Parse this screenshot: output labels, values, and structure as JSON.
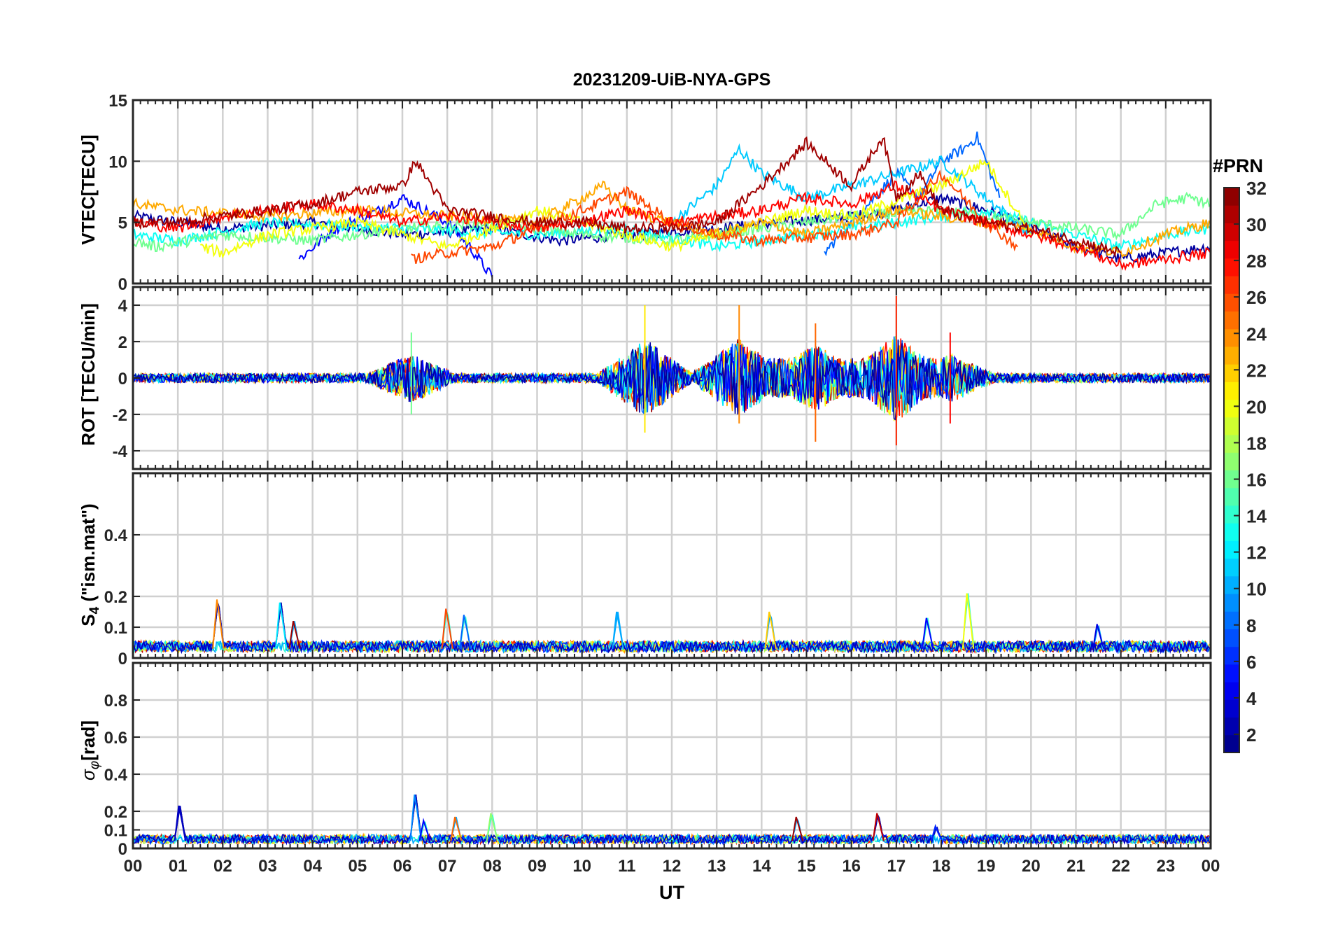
{
  "chart_data": {
    "type": "line",
    "title": "20231209-UiB-NYA-GPS",
    "xlabel": "UT",
    "x_unit": "hours UT",
    "xlim": [
      0,
      24
    ],
    "x_tick_labels": [
      "00",
      "01",
      "02",
      "03",
      "04",
      "05",
      "06",
      "07",
      "08",
      "09",
      "10",
      "11",
      "12",
      "13",
      "14",
      "15",
      "16",
      "17",
      "18",
      "19",
      "20",
      "21",
      "22",
      "23",
      "00"
    ],
    "grid": true,
    "color_by": "PRN",
    "colorbar": {
      "title": "#PRN",
      "colormap": "jet",
      "range": [
        1,
        32
      ],
      "tick_labels": [
        "2",
        "4",
        "6",
        "8",
        "10",
        "12",
        "14",
        "16",
        "18",
        "20",
        "22",
        "24",
        "26",
        "28",
        "30",
        "32"
      ],
      "placement": "right"
    },
    "panels": [
      {
        "id": "vtec",
        "ylabel": "VTEC[TECU]",
        "ylim": [
          0,
          15
        ],
        "y_tick_labels": [
          "0",
          "5",
          "10",
          "15"
        ],
        "series": [
          {
            "prn": 2,
            "x": [
              0,
              2,
              4,
              6,
              7,
              8,
              9.5,
              11,
              13,
              14.5,
              16,
              17,
              18,
              19,
              20,
              21,
              22,
              23,
              24
            ],
            "y": [
              5.5,
              4.5,
              5.0,
              4.0,
              4.2,
              4.5,
              3.5,
              4.0,
              4.5,
              5.0,
              5.5,
              6.0,
              7.0,
              6.0,
              4.5,
              3.0,
              2.0,
              2.5,
              3.0
            ]
          },
          {
            "prn": 5,
            "x": [
              3.7,
              4.5,
              5.5,
              6,
              7,
              7.5,
              8
            ],
            "y": [
              2.0,
              4.5,
              6.0,
              7.0,
              5.0,
              3.0,
              0.5
            ]
          },
          {
            "prn": 8,
            "x": [
              15.4,
              16,
              17,
              17.5,
              18,
              18.5,
              18.8,
              19.3
            ],
            "y": [
              2.5,
              5.0,
              9.0,
              7.0,
              10.0,
              11.0,
              12.0,
              7.0
            ]
          },
          {
            "prn": 11,
            "x": [
              12,
              13,
              13.5,
              14,
              15,
              16,
              17,
              18,
              19,
              20
            ],
            "y": [
              5.0,
              8.0,
              11.0,
              9.0,
              7.0,
              8.0,
              9.0,
              10.0,
              7.0,
              4.0
            ]
          },
          {
            "prn": 13,
            "x": [
              0,
              1,
              3,
              6,
              9,
              11,
              13,
              15,
              17,
              19,
              21,
              22,
              23,
              24
            ],
            "y": [
              4.0,
              3.5,
              5.0,
              4.5,
              4.0,
              4.5,
              3.0,
              4.0,
              5.0,
              6.0,
              4.0,
              3.0,
              4.0,
              4.5
            ]
          },
          {
            "prn": 16,
            "x": [
              0,
              0.5,
              2,
              4,
              6,
              8,
              10,
              12,
              14,
              16,
              18,
              20,
              22,
              22.8,
              23.5,
              24
            ],
            "y": [
              3.5,
              3.0,
              4.0,
              3.5,
              4.5,
              5.0,
              4.0,
              3.5,
              4.5,
              5.5,
              6.0,
              5.0,
              4.0,
              6.5,
              7.0,
              6.5
            ]
          },
          {
            "prn": 20,
            "x": [
              1.5,
              2,
              3,
              5,
              7,
              8,
              9,
              10,
              11,
              12,
              14,
              15,
              16,
              18,
              19,
              20
            ],
            "y": [
              3.0,
              2.5,
              4.0,
              5.0,
              3.0,
              4.5,
              6.0,
              5.0,
              4.0,
              3.0,
              5.0,
              6.0,
              5.5,
              8.0,
              10.0,
              4.0
            ]
          },
          {
            "prn": 23,
            "x": [
              0,
              1,
              3,
              5,
              7,
              9,
              10.5,
              11,
              12,
              13,
              14,
              15,
              16,
              17,
              18,
              19,
              20,
              21,
              22,
              23,
              24
            ],
            "y": [
              6.5,
              6.0,
              5.5,
              6.0,
              5.5,
              5.0,
              8.0,
              6.0,
              5.0,
              4.0,
              5.0,
              4.0,
              5.0,
              6.0,
              5.5,
              5.0,
              4.5,
              3.0,
              2.5,
              4.0,
              5.0
            ]
          },
          {
            "prn": 26,
            "x": [
              6.2,
              7,
              8,
              9,
              10,
              11,
              12,
              13,
              14,
              16,
              17,
              18,
              19,
              19.7
            ],
            "y": [
              2.0,
              2.5,
              3.0,
              4.5,
              6.0,
              7.5,
              5.0,
              4.0,
              3.5,
              4.0,
              5.0,
              9.0,
              5.0,
              3.0
            ]
          },
          {
            "prn": 28,
            "x": [
              0,
              1,
              2,
              3,
              4,
              5,
              6,
              7,
              8,
              9,
              10,
              11,
              12,
              14,
              15,
              16,
              17,
              18,
              19,
              20,
              21,
              22,
              23,
              24
            ],
            "y": [
              5.0,
              4.5,
              5.5,
              6.0,
              6.5,
              6.0,
              5.0,
              5.5,
              5.0,
              4.5,
              5.0,
              6.0,
              5.0,
              6.0,
              7.0,
              6.5,
              8.0,
              6.0,
              5.0,
              4.0,
              3.0,
              1.5,
              2.0,
              2.5
            ]
          },
          {
            "prn": 31,
            "x": [
              0,
              1,
              2,
              3,
              4,
              5,
              6,
              6.3,
              7,
              8,
              9,
              10,
              11,
              12,
              13,
              14,
              15,
              16,
              16.7,
              17,
              17.5,
              18,
              19,
              20,
              21,
              22
            ],
            "y": [
              5.0,
              5.0,
              5.5,
              6.0,
              6.5,
              7.5,
              8.0,
              10.0,
              6.0,
              5.5,
              5.0,
              5.0,
              4.5,
              4.5,
              5.0,
              8.0,
              11.5,
              8.0,
              12.0,
              7.0,
              9.0,
              6.0,
              5.0,
              4.5,
              3.5,
              2.5
            ]
          }
        ]
      },
      {
        "id": "rot",
        "ylabel": "ROT [TECU/min]",
        "ylim": [
          -5,
          5
        ],
        "y_tick_labels": [
          "-4",
          "-2",
          "0",
          "2",
          "4"
        ],
        "annotations": [
          {
            "x": 6.2,
            "y_max": 2.5,
            "y_min": -2.0
          },
          {
            "x": 11.4,
            "y_max": 4.0,
            "y_min": -3.0
          },
          {
            "x": 13.5,
            "y_max": 4.0,
            "y_min": -2.5
          },
          {
            "x": 15.2,
            "y_max": 3.0,
            "y_min": -3.5
          },
          {
            "x": 17.0,
            "y_max": 4.5,
            "y_min": -3.7
          },
          {
            "x": 18.2,
            "y_max": 2.5,
            "y_min": -2.5
          }
        ]
      },
      {
        "id": "s4",
        "ylabel": "S4 (\"ism.mat\")",
        "ylabel_main": "S",
        "ylabel_sub": "4",
        "ylabel_rest": " (\"ism.mat\")",
        "ylim": [
          0,
          0.6
        ],
        "y_tick_labels": [
          "0",
          "0.1",
          "0.2",
          "0.4"
        ],
        "baseline": 0.03,
        "peaks": [
          {
            "x": 1.9,
            "y": 0.19,
            "prn": 24
          },
          {
            "x": 3.3,
            "y": 0.18,
            "prn": 12
          },
          {
            "x": 3.6,
            "y": 0.12,
            "prn": 31
          },
          {
            "x": 7.0,
            "y": 0.16,
            "prn": 26
          },
          {
            "x": 7.4,
            "y": 0.14,
            "prn": 8
          },
          {
            "x": 10.8,
            "y": 0.15,
            "prn": 10
          },
          {
            "x": 14.2,
            "y": 0.15,
            "prn": 22
          },
          {
            "x": 17.7,
            "y": 0.13,
            "prn": 5
          },
          {
            "x": 18.6,
            "y": 0.21,
            "prn": 20
          },
          {
            "x": 21.5,
            "y": 0.11,
            "prn": 4
          }
        ]
      },
      {
        "id": "sigma_phi",
        "ylabel": "σφ[rad]",
        "ylabel_main": "σ",
        "ylabel_sub": "φ",
        "ylabel_rest": "[rad]",
        "ylim": [
          0,
          1
        ],
        "y_tick_labels": [
          "0",
          "0.1",
          "0.2",
          "0.4",
          "0.6",
          "0.8"
        ],
        "baseline": 0.04,
        "peaks": [
          {
            "x": 1.05,
            "y": 0.23,
            "prn": 3
          },
          {
            "x": 6.3,
            "y": 0.29,
            "prn": 9
          },
          {
            "x": 6.5,
            "y": 0.15,
            "prn": 5
          },
          {
            "x": 7.2,
            "y": 0.17,
            "prn": 25
          },
          {
            "x": 8.0,
            "y": 0.19,
            "prn": 17
          },
          {
            "x": 14.8,
            "y": 0.17,
            "prn": 31
          },
          {
            "x": 16.6,
            "y": 0.19,
            "prn": 30
          },
          {
            "x": 17.9,
            "y": 0.12,
            "prn": 6
          }
        ]
      }
    ]
  }
}
